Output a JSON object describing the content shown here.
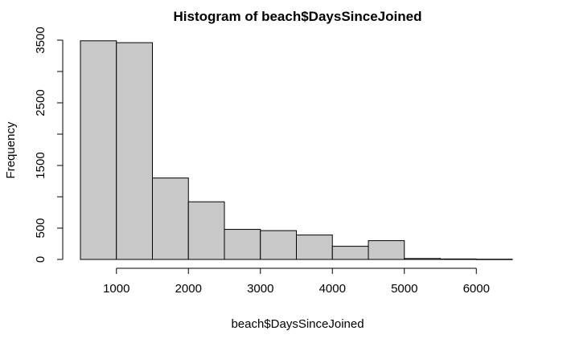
{
  "chart_data": {
    "type": "bar",
    "title": "Histogram of beach$DaysSinceJoined",
    "xlabel": "beach$DaysSinceJoined",
    "ylabel": "Frequency",
    "bins": [
      {
        "from": 500,
        "to": 1000,
        "count": 3490
      },
      {
        "from": 1000,
        "to": 1500,
        "count": 3460
      },
      {
        "from": 1500,
        "to": 2000,
        "count": 1300
      },
      {
        "from": 2000,
        "to": 2500,
        "count": 920
      },
      {
        "from": 2500,
        "to": 3000,
        "count": 480
      },
      {
        "from": 3000,
        "to": 3500,
        "count": 460
      },
      {
        "from": 3500,
        "to": 4000,
        "count": 390
      },
      {
        "from": 4000,
        "to": 4500,
        "count": 210
      },
      {
        "from": 4500,
        "to": 5000,
        "count": 300
      },
      {
        "from": 5000,
        "to": 5500,
        "count": 15
      },
      {
        "from": 5500,
        "to": 6000,
        "count": 8
      },
      {
        "from": 6000,
        "to": 6500,
        "count": 4
      }
    ],
    "xlim": [
      500,
      6500
    ],
    "ylim": [
      0,
      3500
    ],
    "x_ticks": [
      1000,
      2000,
      3000,
      4000,
      5000,
      6000
    ],
    "x_tick_labels": [
      "1000",
      "2000",
      "3000",
      "4000",
      "5000",
      "6000"
    ],
    "y_ticks": [
      0,
      500,
      1000,
      1500,
      2000,
      2500,
      3000,
      3500
    ],
    "y_tick_labels": [
      "0",
      "500",
      "",
      "1500",
      "",
      "2500",
      "",
      "3500"
    ],
    "bar_color": "#c8c8c8",
    "grid": false
  }
}
